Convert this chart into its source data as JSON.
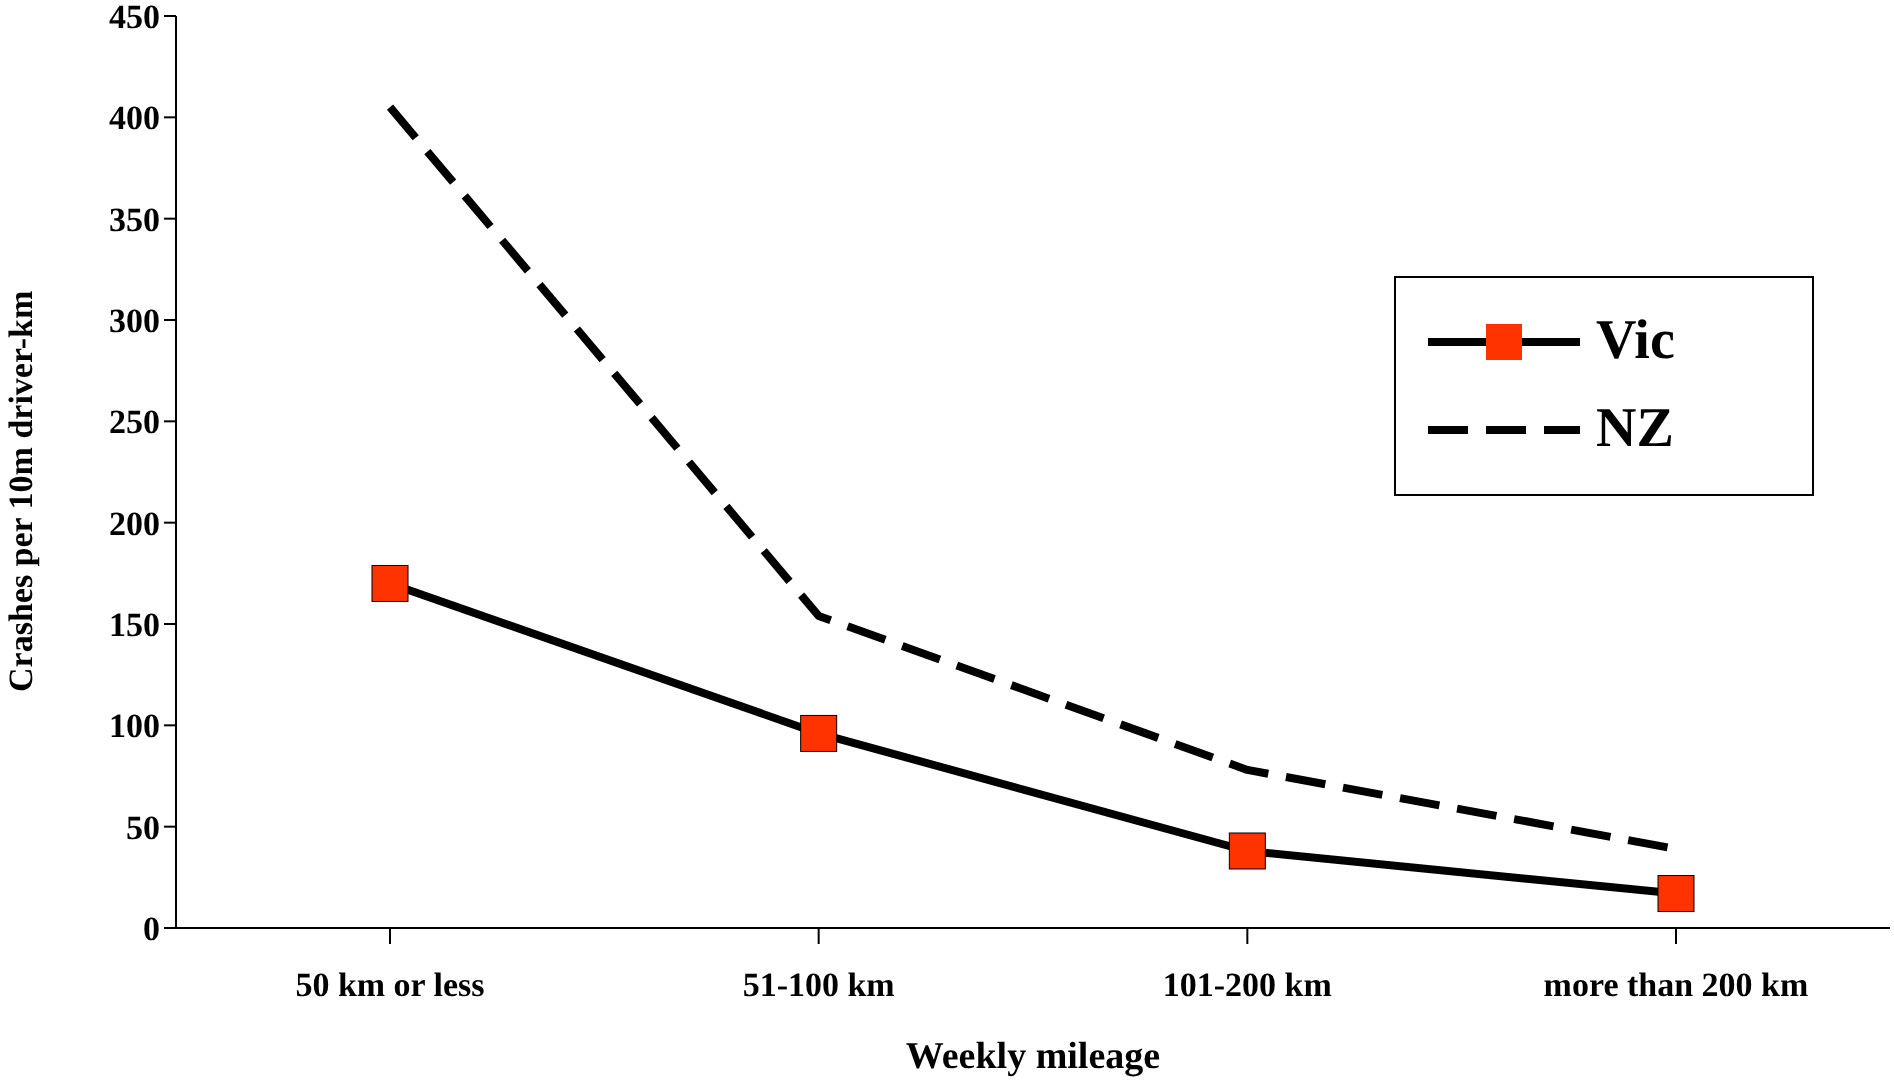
{
  "chart_data": {
    "type": "line",
    "xlabel": "Weekly mileage",
    "ylabel": "Crashes per 10m driver-km",
    "categories": [
      "50 km or less",
      "51-100 km",
      "101-200 km",
      "more than 200 km"
    ],
    "series": [
      {
        "name": "Vic",
        "color": "#ff3300",
        "values": [
          170,
          96,
          38,
          17
        ],
        "marker": "square",
        "line_style": "solid"
      },
      {
        "name": "NZ",
        "color": "#000000",
        "values": [
          405,
          154,
          78,
          39
        ],
        "marker": "none",
        "line_style": "dashed"
      }
    ],
    "ylim": [
      0,
      450
    ],
    "yticks": [
      0,
      50,
      100,
      150,
      200,
      250,
      300,
      350,
      400,
      450
    ],
    "grid": false,
    "legend": "right"
  }
}
